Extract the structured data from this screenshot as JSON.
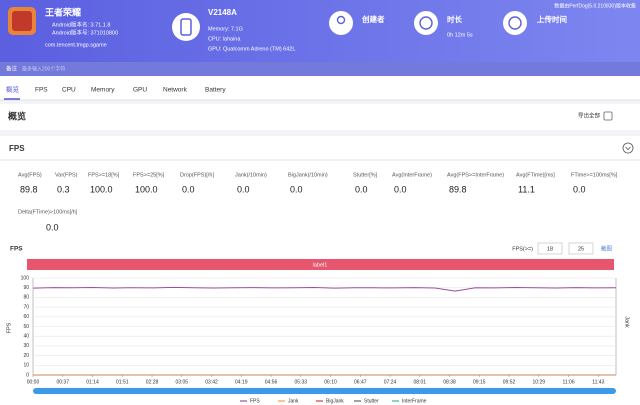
{
  "header": {
    "app_name": "王者荣耀",
    "version_name": "Android版本名: 3.71.1.8",
    "version_code": "Android版本号: 371010800",
    "package": "com.tencent.tmgp.sgame",
    "device": "V2148A",
    "memory": "Memory: 7.1G",
    "cpu": "CPU: lahaina",
    "gpu": "GPU: Qualcomm Adreno (TM) 642L",
    "creator_label": "创建者",
    "duration_label": "时长",
    "duration": "0h 12m 5s",
    "upload_label": "上传时间",
    "source": "数据由PerfDog(5.0.210830)版本收集"
  },
  "note": {
    "label": "备注",
    "placeholder": "最多输入200个字符"
  },
  "tabs": [
    "概览",
    "FPS",
    "CPU",
    "Memory",
    "GPU",
    "Network",
    "Battery"
  ],
  "overview": {
    "title": "概览",
    "export": "导出全部"
  },
  "fps_section": {
    "title": "FPS",
    "stats": [
      {
        "label": "Avg(FPS)",
        "value": "89.8"
      },
      {
        "label": "Var(FPS)",
        "value": "0.3"
      },
      {
        "label": "FPS>=18[%]",
        "value": "100.0"
      },
      {
        "label": "FPS>=25[%]",
        "value": "100.0"
      },
      {
        "label": "Drop(FPS)[/h]",
        "value": "0.0"
      },
      {
        "label": "Jank(/10min)",
        "value": "0.0"
      },
      {
        "label": "BigJank(/10min)",
        "value": "0.0"
      },
      {
        "label": "Stutter[%]",
        "value": "0.0"
      },
      {
        "label": "Avg(InterFrame)",
        "value": "0.0"
      },
      {
        "label": "Avg(FPS>=InterFrame)",
        "value": "89.8"
      },
      {
        "label": "Avg(FTime)[ms]",
        "value": "11.1"
      },
      {
        "label": "FTime>=100ms[%]",
        "value": "0.0"
      },
      {
        "label": "Delta(FTime)>100ms[/h]",
        "value": "0.0"
      }
    ]
  },
  "chart_data": {
    "type": "line",
    "title": "FPS",
    "threshold_label": "FPS(>=)",
    "thresholds": [
      18,
      25
    ],
    "screenshot": "截图",
    "band_label": "label1",
    "ylabel": "FPS",
    "y2label": "Jank",
    "xlim": [
      0,
      725
    ],
    "ylim": [
      0,
      100
    ],
    "grid": true,
    "yticks": [
      0,
      10,
      20,
      30,
      40,
      50,
      60,
      70,
      80,
      90,
      100
    ],
    "xticks": [
      {
        "value": 0,
        "label": "00:00"
      },
      {
        "value": 37,
        "label": "00:37"
      },
      {
        "value": 74,
        "label": "01:14"
      },
      {
        "value": 111,
        "label": "01:51"
      },
      {
        "value": 148,
        "label": "02:28"
      },
      {
        "value": 185,
        "label": "03:05"
      },
      {
        "value": 222,
        "label": "03:42"
      },
      {
        "value": 259,
        "label": "04:19"
      },
      {
        "value": 296,
        "label": "04:56"
      },
      {
        "value": 333,
        "label": "05:33"
      },
      {
        "value": 370,
        "label": "06:10"
      },
      {
        "value": 407,
        "label": "06:47"
      },
      {
        "value": 444,
        "label": "07:24"
      },
      {
        "value": 481,
        "label": "08:01"
      },
      {
        "value": 518,
        "label": "08:38"
      },
      {
        "value": 555,
        "label": "09:15"
      },
      {
        "value": 592,
        "label": "09:52"
      },
      {
        "value": 629,
        "label": "10:29"
      },
      {
        "value": 666,
        "label": "11:06"
      },
      {
        "value": 703,
        "label": "11:43"
      }
    ],
    "x": [
      0,
      25,
      50,
      75,
      100,
      125,
      150,
      175,
      200,
      225,
      250,
      275,
      300,
      325,
      350,
      375,
      400,
      425,
      450,
      475,
      500,
      525,
      550,
      575,
      600,
      625,
      650,
      675,
      700,
      725
    ],
    "series": [
      {
        "name": "FPS",
        "color": "#9c4f9c",
        "values": [
          89.6,
          90.1,
          89.9,
          90.2,
          89.7,
          90.0,
          89.8,
          90.3,
          89.9,
          89.7,
          90.0,
          90.1,
          89.8,
          89.9,
          90.2,
          89.6,
          90.0,
          89.9,
          89.8,
          90.1,
          89.7,
          86.5,
          90.0,
          89.8,
          90.2,
          89.9,
          89.7,
          90.1,
          89.8,
          90.0
        ]
      },
      {
        "name": "Jank",
        "color": "#f0a050",
        "values": [
          0,
          0,
          0,
          0,
          0,
          0,
          0,
          0,
          0,
          0,
          0,
          0,
          0,
          0,
          0,
          0,
          0,
          0,
          0,
          0,
          0,
          0,
          0,
          0,
          0,
          0,
          0,
          0,
          0,
          0
        ]
      },
      {
        "name": "BigJank",
        "color": "#d04040",
        "values": [
          0,
          0,
          0,
          0,
          0,
          0,
          0,
          0,
          0,
          0,
          0,
          0,
          0,
          0,
          0,
          0,
          0,
          0,
          0,
          0,
          0,
          0,
          0,
          0,
          0,
          0,
          0,
          0,
          0,
          0
        ]
      },
      {
        "name": "Stutter",
        "color": "#666666",
        "values": [
          0,
          0,
          0,
          0,
          0,
          0,
          0,
          0,
          0,
          0,
          0,
          0,
          0,
          0,
          0,
          0,
          0,
          0,
          0,
          0,
          0,
          0,
          0,
          0,
          0,
          0,
          0,
          0,
          0,
          0
        ]
      },
      {
        "name": "InterFrame",
        "color": "#40b0a0",
        "values": [
          0,
          0,
          0,
          0,
          0,
          0,
          0,
          0,
          0,
          0,
          0,
          0,
          0,
          0,
          0,
          0,
          0,
          0,
          0,
          0,
          0,
          0,
          0,
          0,
          0,
          0,
          0,
          0,
          0,
          0
        ]
      }
    ]
  }
}
